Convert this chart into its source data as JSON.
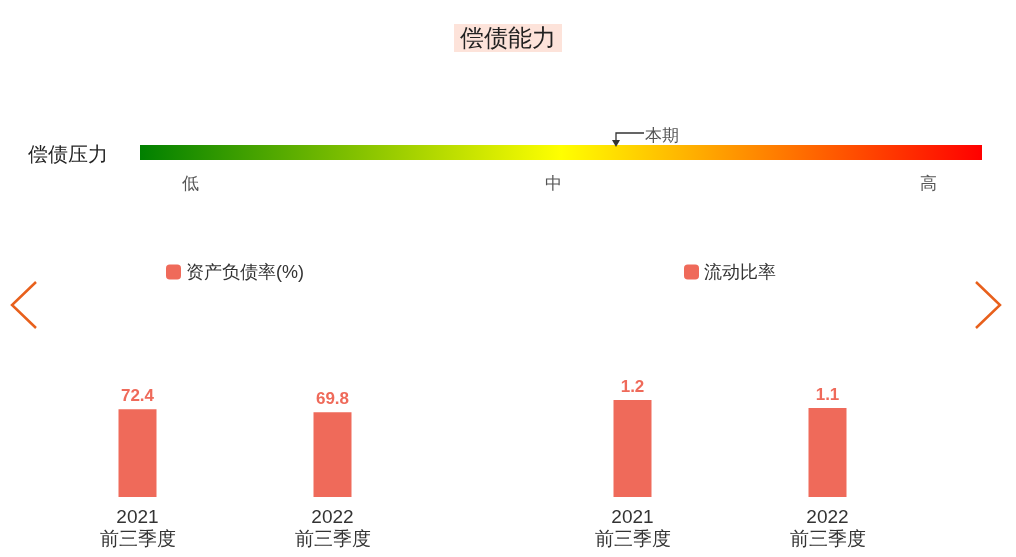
{
  "chart_data": [
    {
      "type": "other",
      "title": "偿债能力",
      "annotations": [
        "偿债压力",
        "低",
        "中",
        "高",
        "本期"
      ]
    },
    {
      "type": "bar",
      "categories": [
        "2021\n前三季度",
        "2022\n前三季度"
      ],
      "series": [
        {
          "name": "资产负债率(%)",
          "color": "#ef6a5a",
          "values": [
            72.4,
            69.8
          ]
        }
      ],
      "data_labels": true,
      "legend": "top",
      "tick_labels": "x"
    },
    {
      "type": "bar",
      "categories": [
        "2021\n前三季度",
        "2022\n前三季度"
      ],
      "series": [
        {
          "name": "流动比率",
          "color": "#ef6a5a",
          "values": [
            1.2,
            1.1
          ]
        }
      ],
      "data_labels": true,
      "legend": "top",
      "tick_labels": "x"
    }
  ]
}
